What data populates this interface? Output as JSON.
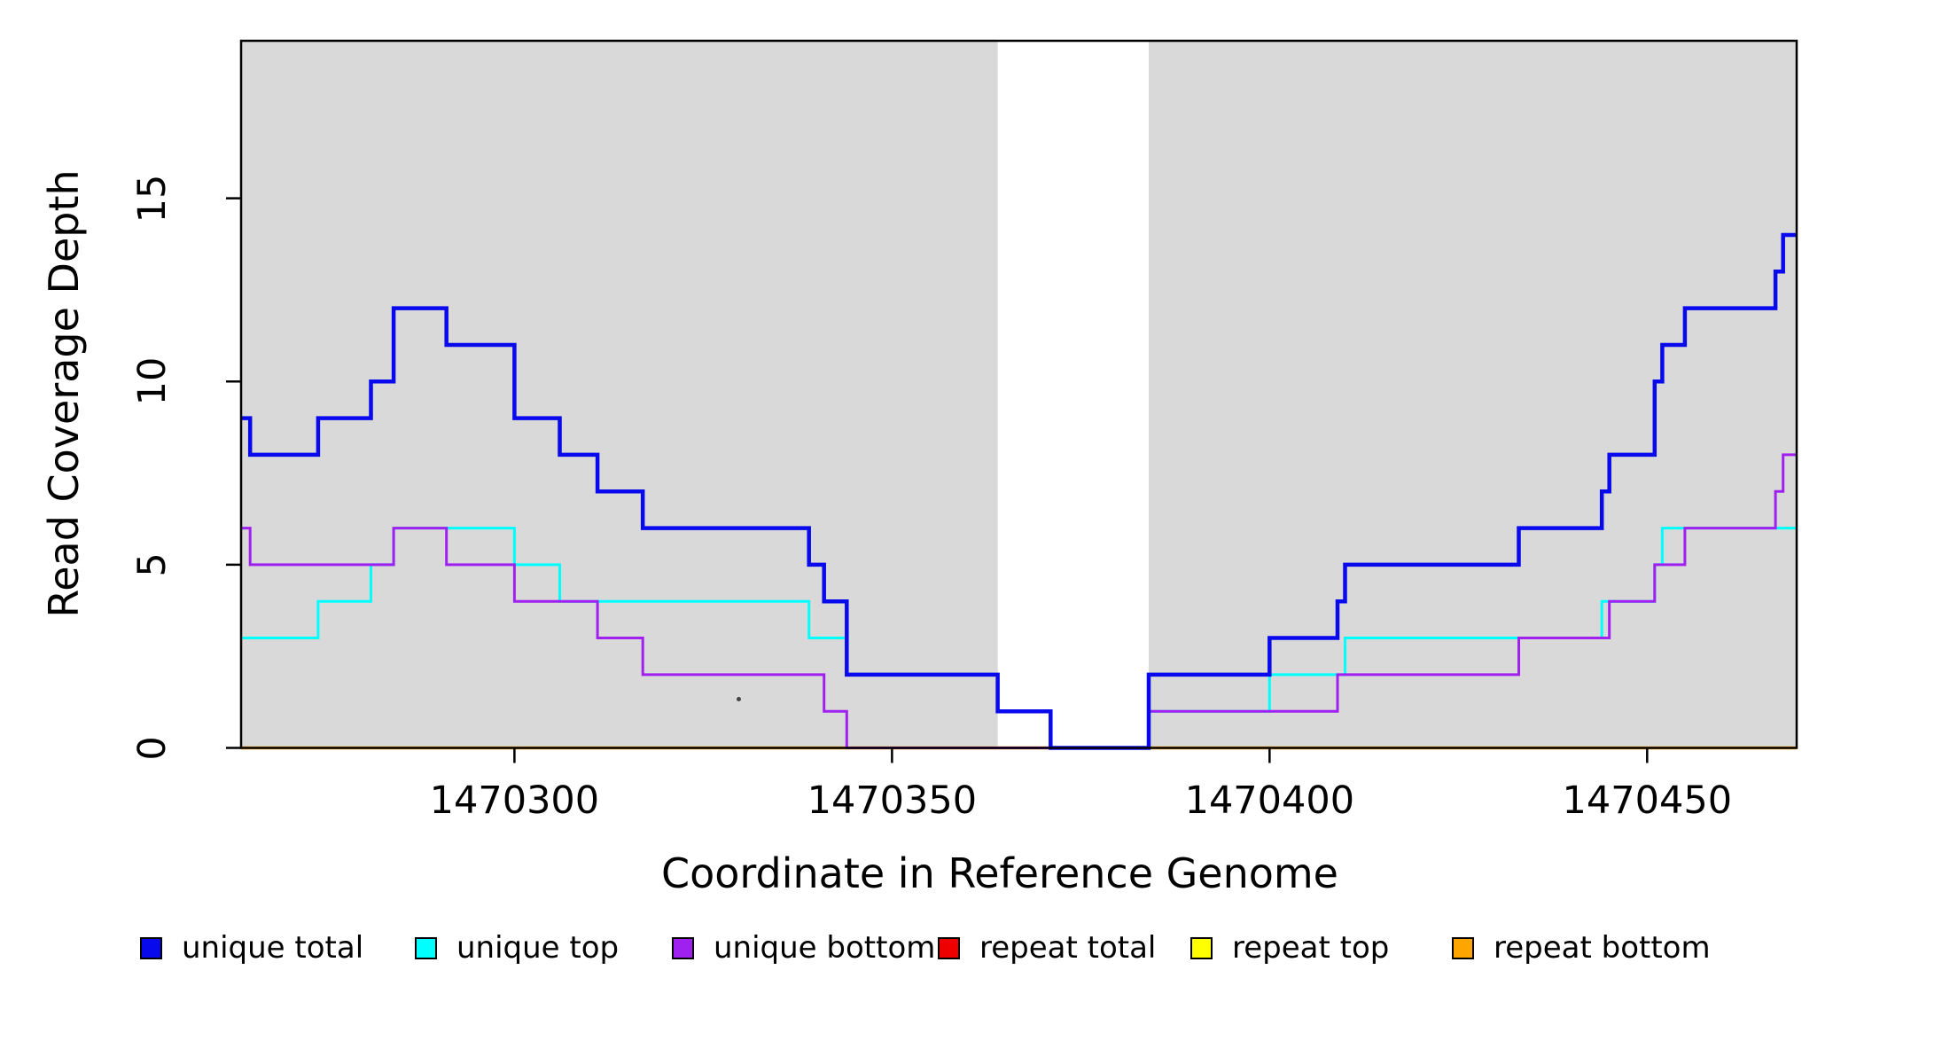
{
  "y_axis": {
    "title": "Read Coverage Depth",
    "ticks": [
      {
        "value": 0,
        "label": "0"
      },
      {
        "value": 5,
        "label": "5"
      },
      {
        "value": 10,
        "label": "10"
      },
      {
        "value": 15,
        "label": "15"
      }
    ]
  },
  "x_axis": {
    "title": "Coordinate in Reference Genome",
    "ticks": [
      {
        "coord": 1470300,
        "label": "1470300"
      },
      {
        "coord": 1470350,
        "label": "1470350"
      },
      {
        "coord": 1470400,
        "label": "1470400"
      },
      {
        "coord": 1470450,
        "label": "1470450"
      }
    ]
  },
  "legend": {
    "items": [
      {
        "label": "unique total",
        "color": "#0909EE"
      },
      {
        "label": "unique top",
        "color": "#00FFFF"
      },
      {
        "label": "unique bottom",
        "color": "#A020F0"
      },
      {
        "label": "repeat total",
        "color": "#EE0000"
      },
      {
        "label": "repeat top",
        "color": "#FFFF00"
      },
      {
        "label": "repeat bottom",
        "color": "#FFA500"
      }
    ]
  },
  "chart_data": {
    "type": "line",
    "subtype": "step-coverage",
    "xlabel": "Coordinate in Reference Genome",
    "ylabel": "Read Coverage Depth",
    "xlim": [
      1470263.8,
      1470469.8
    ],
    "ylim": [
      0,
      19.3
    ],
    "x_tick_values": [
      1470300,
      1470350,
      1470400,
      1470450
    ],
    "y_tick_values": [
      0,
      5,
      10,
      15
    ],
    "grid": false,
    "plot_background": "#FFFFFF",
    "shaded_band_color": "#D9D9D9",
    "shaded_regions": [
      [
        1470263.8,
        1470364
      ],
      [
        1470384,
        1470469.8
      ]
    ],
    "unshaded_gap": [
      1470364,
      1470384
    ],
    "legend_position": "bottom",
    "series": [
      {
        "name": "unique total",
        "color": "#0909EE",
        "width": 4.5,
        "step_points": [
          [
            1470263.8,
            9
          ],
          [
            1470265,
            8
          ],
          [
            1470274,
            9
          ],
          [
            1470281,
            10
          ],
          [
            1470284,
            12
          ],
          [
            1470291,
            11
          ],
          [
            1470300,
            9
          ],
          [
            1470306,
            8
          ],
          [
            1470311,
            7
          ],
          [
            1470317,
            6
          ],
          [
            1470339,
            5
          ],
          [
            1470341,
            4
          ],
          [
            1470344,
            2
          ],
          [
            1470364,
            1
          ],
          [
            1470371,
            0
          ],
          [
            1470384,
            2
          ],
          [
            1470400,
            3
          ],
          [
            1470409,
            4
          ],
          [
            1470410,
            5
          ],
          [
            1470433,
            6
          ],
          [
            1470444,
            7
          ],
          [
            1470445,
            8
          ],
          [
            1470451,
            10
          ],
          [
            1470452,
            11
          ],
          [
            1470455,
            12
          ],
          [
            1470467,
            13
          ],
          [
            1470468,
            14
          ]
        ]
      },
      {
        "name": "unique top",
        "color": "#00FFFF",
        "width": 3,
        "step_points": [
          [
            1470263.8,
            3
          ],
          [
            1470274,
            4
          ],
          [
            1470281,
            5
          ],
          [
            1470284,
            6
          ],
          [
            1470300,
            5
          ],
          [
            1470306,
            4
          ],
          [
            1470339,
            3
          ],
          [
            1470344,
            2
          ],
          [
            1470364,
            1
          ],
          [
            1470371,
            0
          ],
          [
            1470384,
            1
          ],
          [
            1470400,
            2
          ],
          [
            1470410,
            3
          ],
          [
            1470444,
            4
          ],
          [
            1470451,
            5
          ],
          [
            1470452,
            6
          ]
        ]
      },
      {
        "name": "unique bottom",
        "color": "#A020F0",
        "width": 3,
        "step_points": [
          [
            1470263.8,
            6
          ],
          [
            1470265,
            5
          ],
          [
            1470284,
            6
          ],
          [
            1470291,
            5
          ],
          [
            1470300,
            4
          ],
          [
            1470311,
            3
          ],
          [
            1470317,
            2
          ],
          [
            1470341,
            1
          ],
          [
            1470344,
            0
          ],
          [
            1470384,
            1
          ],
          [
            1470409,
            2
          ],
          [
            1470433,
            3
          ],
          [
            1470445,
            4
          ],
          [
            1470451,
            5
          ],
          [
            1470455,
            6
          ],
          [
            1470467,
            7
          ],
          [
            1470468,
            8
          ]
        ]
      },
      {
        "name": "repeat total",
        "color": "#EE0000",
        "width": 3,
        "step_points": [
          [
            1470263.8,
            0
          ]
        ]
      },
      {
        "name": "repeat top",
        "color": "#FFFF00",
        "width": 3,
        "step_points": [
          [
            1470263.8,
            0
          ]
        ]
      },
      {
        "name": "repeat bottom",
        "color": "#FFA500",
        "width": 3.5,
        "step_points": [
          [
            1470263.8,
            0
          ]
        ]
      }
    ],
    "draw_order": [
      3,
      4,
      5,
      1,
      2,
      0
    ]
  }
}
